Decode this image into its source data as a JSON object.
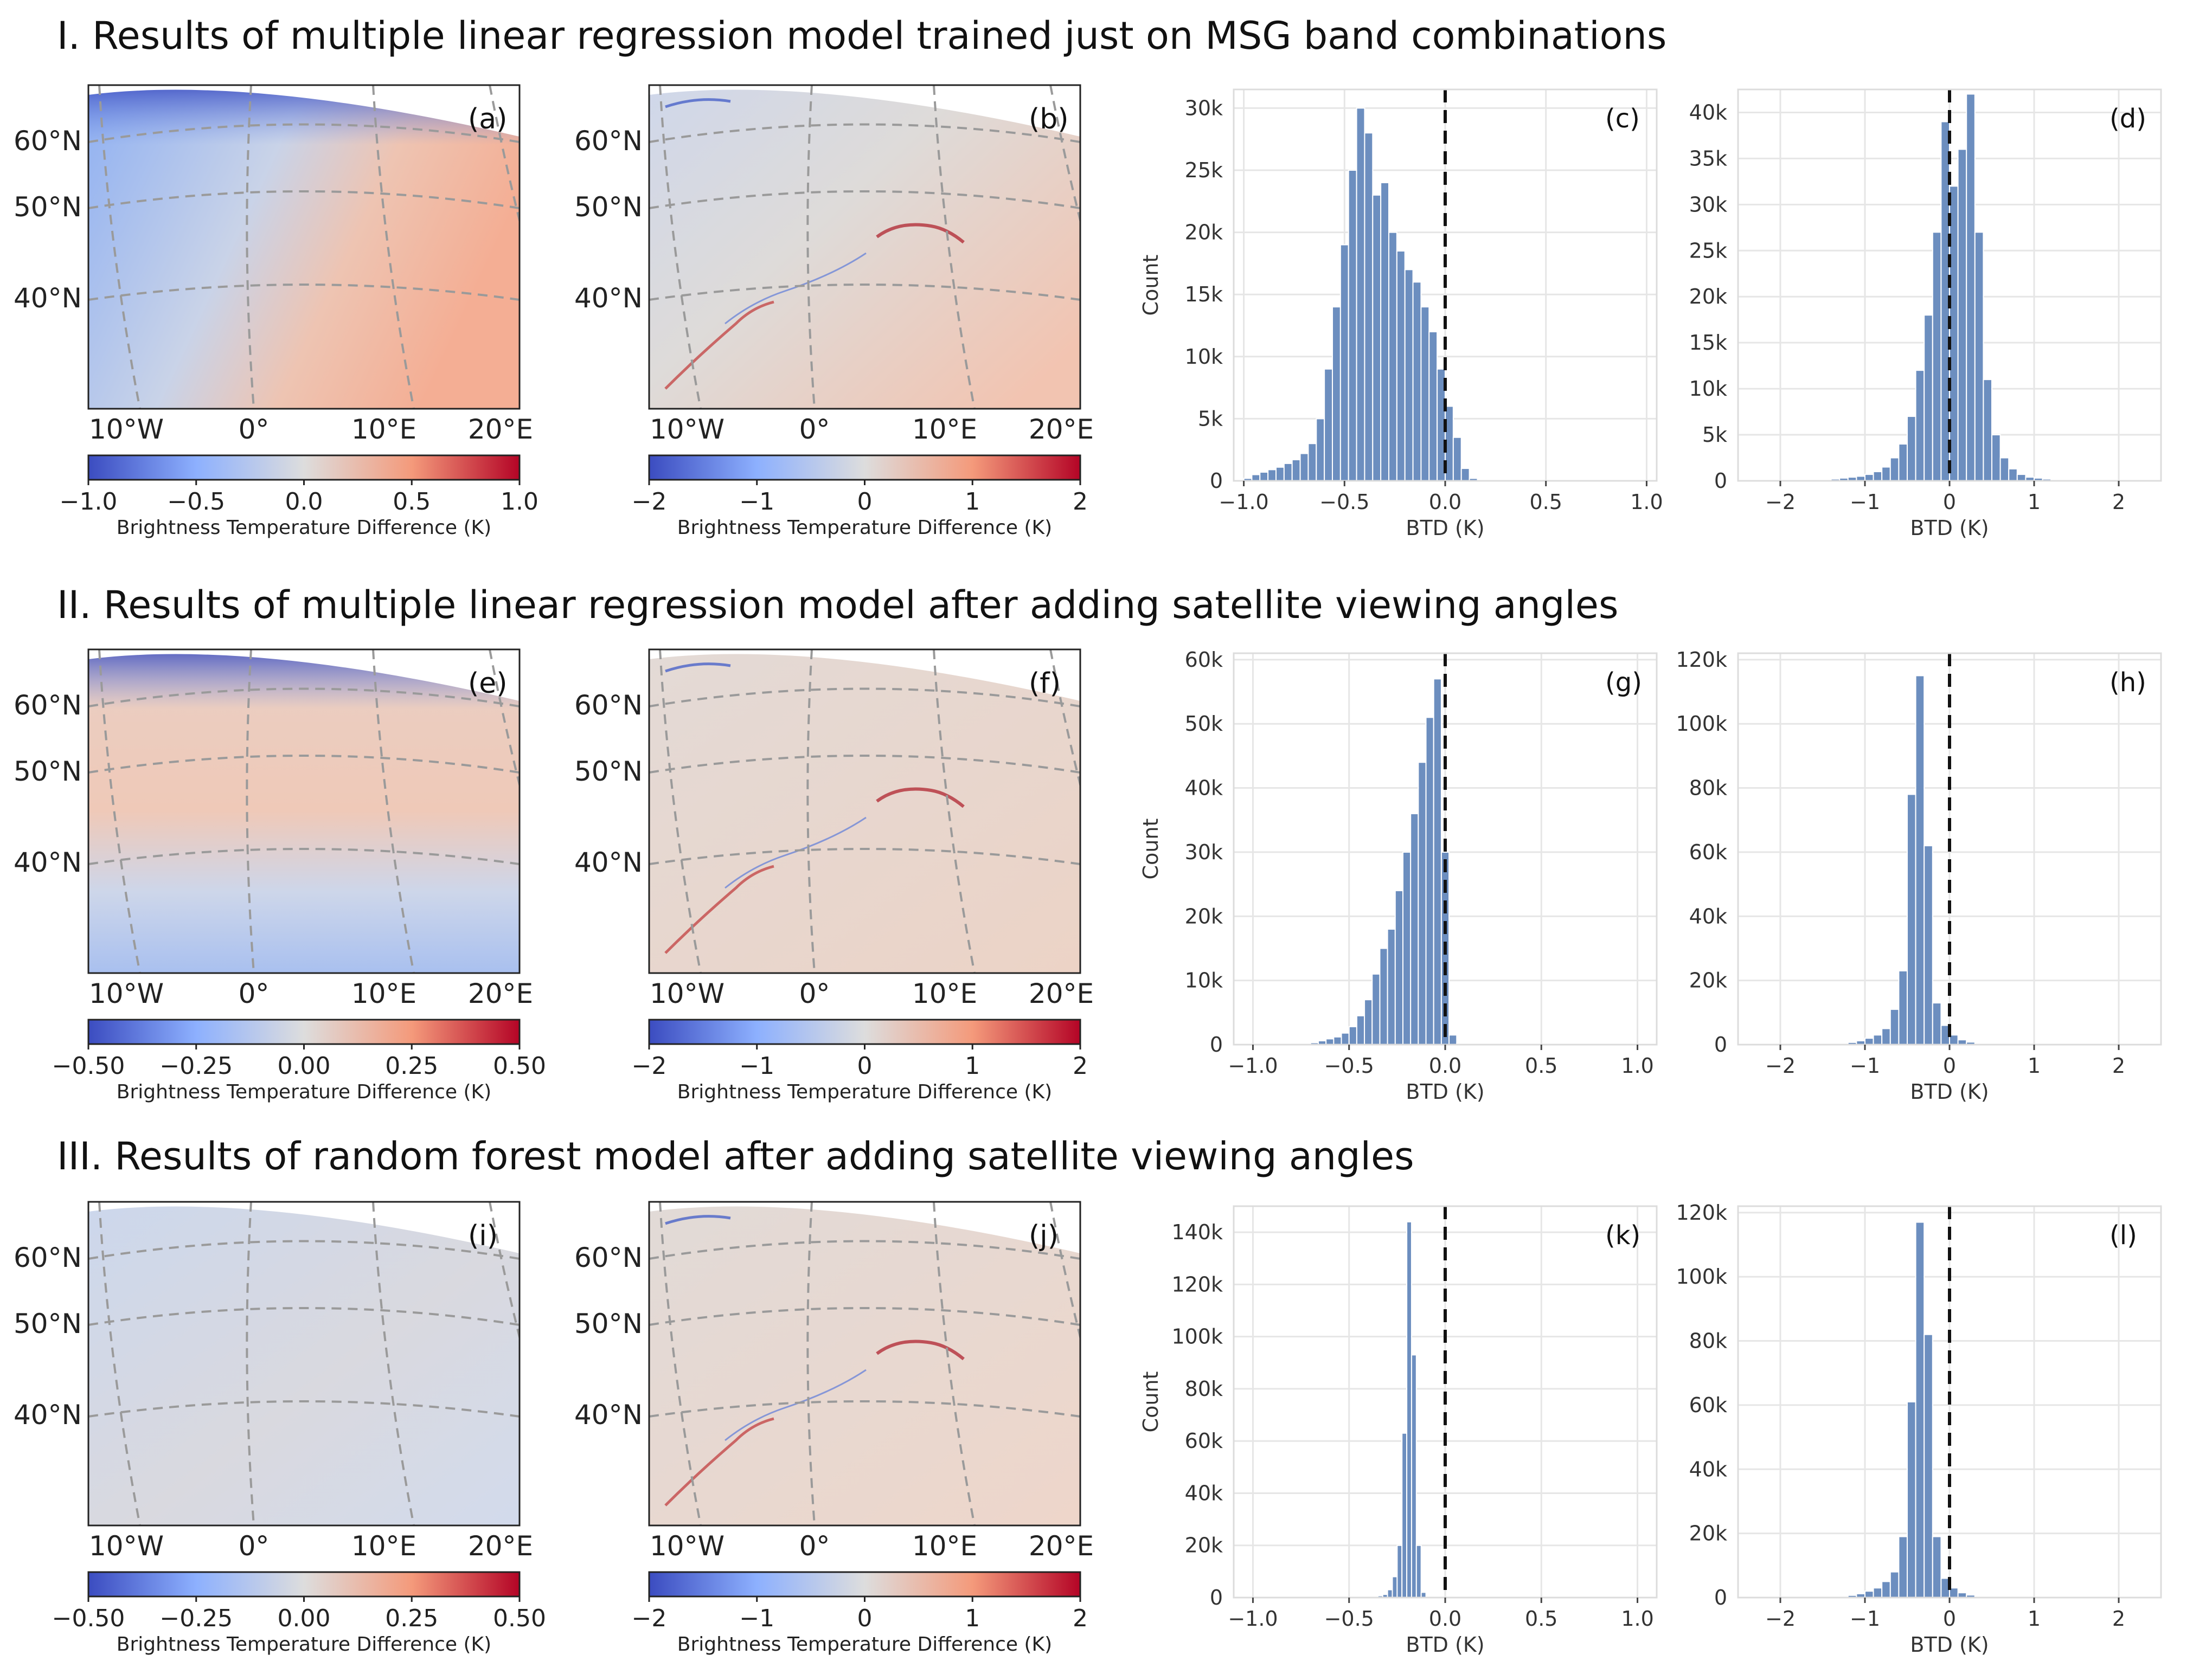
{
  "colors": {
    "bar_fill": "#6c8ebf",
    "bar_edge": "#ffffff",
    "grid": "#e6e6e6",
    "graticule": "#9a9a9a",
    "cmap_low": "#3b4cc0",
    "cmap_mid": "#dddddd",
    "cmap_high": "#b40426",
    "text": "#222222"
  },
  "common": {
    "colorbar_label": "Brightness Temperature Difference (K)",
    "hist_xlabel": "BTD (K)",
    "hist_ylabel": "Count",
    "lat_labels": [
      "60°N",
      "50°N",
      "40°N"
    ],
    "lon_labels": [
      "10°W",
      "0°",
      "10°E",
      "20°E"
    ]
  },
  "rows": [
    {
      "title": "I. Results of multiple linear regression model trained just on MSG band combinations",
      "maps": [
        {
          "panel": "(a)",
          "pattern": "a",
          "cb_ticks": [
            "−1.0",
            "−0.5",
            "0.0",
            "0.5",
            "1.0"
          ]
        },
        {
          "panel": "(b)",
          "pattern": "b",
          "cb_ticks": [
            "−2",
            "−1",
            "0",
            "1",
            "2"
          ]
        }
      ]
    },
    {
      "title": "II. Results of multiple linear regression model after adding satellite viewing angles",
      "maps": [
        {
          "panel": "(e)",
          "pattern": "e",
          "cb_ticks": [
            "−0.50",
            "−0.25",
            "0.00",
            "0.25",
            "0.50"
          ]
        },
        {
          "panel": "(f)",
          "pattern": "f",
          "cb_ticks": [
            "−2",
            "−1",
            "0",
            "1",
            "2"
          ]
        }
      ]
    },
    {
      "title": "III. Results of random forest model after adding satellite viewing angles",
      "maps": [
        {
          "panel": "(i)",
          "pattern": "i",
          "cb_ticks": [
            "−0.50",
            "−0.25",
            "0.00",
            "0.25",
            "0.50"
          ]
        },
        {
          "panel": "(j)",
          "pattern": "j",
          "cb_ticks": [
            "−2",
            "−1",
            "0",
            "1",
            "2"
          ]
        }
      ]
    }
  ],
  "chart_data": [
    {
      "type": "bar",
      "panel": "(c)",
      "xlabel": "BTD (K)",
      "ylabel": "Count",
      "xlim": [
        -1.05,
        1.05
      ],
      "ylim": [
        0,
        31500
      ],
      "xticks": [
        -1.0,
        -0.5,
        0.0,
        0.5,
        1.0
      ],
      "xtick_labels": [
        "−1.0",
        "−0.5",
        "0.0",
        "0.5",
        "1.0"
      ],
      "yticks": [
        0,
        5000,
        10000,
        15000,
        20000,
        25000,
        30000
      ],
      "ytick_labels": [
        "0",
        "5k",
        "10k",
        "15k",
        "20k",
        "25k",
        "30k"
      ],
      "vline": 0.0,
      "bin_start": -1.0,
      "bin_width": 0.04,
      "values": [
        200,
        500,
        700,
        900,
        1100,
        1400,
        1700,
        2200,
        3000,
        5000,
        9000,
        14000,
        19000,
        25000,
        30000,
        28000,
        23000,
        24000,
        20000,
        18500,
        17000,
        16000,
        14000,
        12000,
        9000,
        6000,
        3500,
        1000,
        200,
        0,
        0,
        0,
        0,
        0,
        0,
        0,
        0,
        0,
        0,
        0,
        0,
        0,
        0,
        0,
        0,
        0,
        0,
        0,
        0,
        0
      ]
    },
    {
      "type": "bar",
      "panel": "(d)",
      "xlabel": "BTD (K)",
      "ylabel": "",
      "xlim": [
        -2.5,
        2.5
      ],
      "ylim": [
        0,
        42500
      ],
      "xticks": [
        -2,
        -1,
        0,
        1,
        2
      ],
      "xtick_labels": [
        "−2",
        "−1",
        "0",
        "1",
        "2"
      ],
      "yticks": [
        0,
        5000,
        10000,
        15000,
        20000,
        25000,
        30000,
        35000,
        40000
      ],
      "ytick_labels": [
        "0",
        "5k",
        "10k",
        "15k",
        "20k",
        "25k",
        "30k",
        "35k",
        "40k"
      ],
      "vline": 0.0,
      "bin_start": -2.0,
      "bin_width": 0.1,
      "values": [
        0,
        0,
        0,
        0,
        50,
        100,
        200,
        300,
        400,
        500,
        700,
        1000,
        1500,
        2500,
        4000,
        7000,
        12000,
        18000,
        27000,
        39000,
        32000,
        36000,
        42000,
        27000,
        11000,
        5000,
        2500,
        1300,
        700,
        400,
        300,
        200,
        100,
        50,
        0,
        0,
        0,
        0,
        0,
        0,
        0
      ]
    },
    {
      "type": "bar",
      "panel": "(g)",
      "xlabel": "BTD (K)",
      "ylabel": "Count",
      "xlim": [
        -1.1,
        1.1
      ],
      "ylim": [
        0,
        61000
      ],
      "xticks": [
        -1.0,
        -0.5,
        0.0,
        0.5,
        1.0
      ],
      "xtick_labels": [
        "−1.0",
        "−0.5",
        "0.0",
        "0.5",
        "1.0"
      ],
      "yticks": [
        0,
        10000,
        20000,
        30000,
        40000,
        50000,
        60000
      ],
      "ytick_labels": [
        "0",
        "10k",
        "20k",
        "30k",
        "40k",
        "50k",
        "60k"
      ],
      "vline": 0.0,
      "bin_start": -0.7,
      "bin_width": 0.04,
      "values": [
        300,
        600,
        900,
        1200,
        1800,
        2800,
        4500,
        7000,
        11000,
        15000,
        18000,
        24000,
        30000,
        36000,
        44000,
        51000,
        57000,
        30000,
        1500,
        200,
        0,
        0,
        0,
        0,
        0,
        0,
        0,
        0,
        0,
        0,
        0,
        0,
        0,
        0,
        0,
        0,
        0,
        0,
        0,
        0,
        0,
        0,
        0,
        0,
        0
      ]
    },
    {
      "type": "bar",
      "panel": "(h)",
      "xlabel": "BTD (K)",
      "ylabel": "",
      "xlim": [
        -2.5,
        2.5
      ],
      "ylim": [
        0,
        122000
      ],
      "xticks": [
        -2,
        -1,
        0,
        1,
        2
      ],
      "xtick_labels": [
        "−2",
        "−1",
        "0",
        "1",
        "2"
      ],
      "yticks": [
        0,
        20000,
        40000,
        60000,
        80000,
        100000,
        120000
      ],
      "ytick_labels": [
        "0",
        "20k",
        "40k",
        "60k",
        "80k",
        "100k",
        "120k"
      ],
      "vline": 0.0,
      "bin_start": -2.0,
      "bin_width": 0.1,
      "values": [
        0,
        0,
        0,
        0,
        0,
        100,
        200,
        400,
        700,
        1200,
        2000,
        3000,
        5000,
        11000,
        23000,
        78000,
        115000,
        62000,
        13000,
        6000,
        3000,
        1500,
        800,
        400,
        200,
        100,
        0,
        0,
        0,
        0,
        0,
        0,
        0,
        0,
        0,
        0,
        0,
        0,
        0,
        0,
        0
      ]
    },
    {
      "type": "bar",
      "panel": "(k)",
      "xlabel": "BTD (K)",
      "ylabel": "Count",
      "xlim": [
        -1.1,
        1.1
      ],
      "ylim": [
        0,
        150000
      ],
      "xticks": [
        -1.0,
        -0.5,
        0.0,
        0.5,
        1.0
      ],
      "xtick_labels": [
        "−1.0",
        "−0.5",
        "0.0",
        "0.5",
        "1.0"
      ],
      "yticks": [
        0,
        20000,
        40000,
        60000,
        80000,
        100000,
        120000,
        140000
      ],
      "ytick_labels": [
        "0",
        "20k",
        "40k",
        "60k",
        "80k",
        "100k",
        "120k",
        "140k"
      ],
      "vline": 0.0,
      "bin_start": -0.4,
      "bin_width": 0.025,
      "values": [
        200,
        400,
        700,
        1200,
        3000,
        8000,
        20000,
        63000,
        144000,
        93000,
        20000,
        2000,
        0,
        0,
        0,
        0,
        0,
        0
      ]
    },
    {
      "type": "bar",
      "panel": "(l)",
      "xlabel": "BTD (K)",
      "ylabel": "",
      "xlim": [
        -2.5,
        2.5
      ],
      "ylim": [
        0,
        122000
      ],
      "xticks": [
        -2,
        -1,
        0,
        1,
        2
      ],
      "xtick_labels": [
        "−2",
        "−1",
        "0",
        "1",
        "2"
      ],
      "yticks": [
        0,
        20000,
        40000,
        60000,
        80000,
        100000,
        120000
      ],
      "ytick_labels": [
        "0",
        "20k",
        "40k",
        "60k",
        "80k",
        "100k",
        "120k"
      ],
      "vline": 0.0,
      "bin_start": -2.0,
      "bin_width": 0.1,
      "values": [
        0,
        0,
        0,
        0,
        0,
        100,
        200,
        400,
        700,
        1200,
        2000,
        3000,
        5000,
        8000,
        19000,
        61000,
        117000,
        82000,
        19000,
        6000,
        3000,
        1500,
        800,
        400,
        200,
        100,
        0,
        0,
        0,
        0,
        0,
        0,
        0,
        0,
        0,
        0,
        0,
        0,
        0,
        0,
        0
      ]
    }
  ]
}
